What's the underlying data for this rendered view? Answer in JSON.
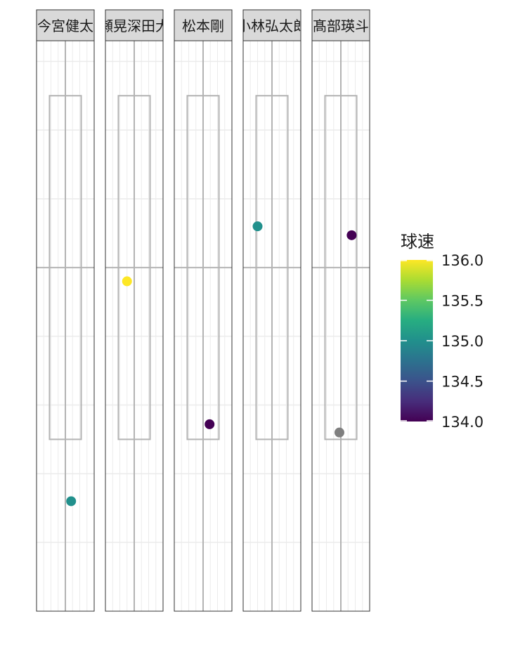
{
  "chart_data": {
    "type": "scatter",
    "facets": [
      "今宮健太",
      "川瀬晃深田大翔",
      "松本剛",
      "小林弘太郎",
      "髙部瑛斗"
    ],
    "xlim": [
      -2,
      2
    ],
    "ylim": [
      -1,
      7.3
    ],
    "strike_zone": {
      "x": [
        -1.1,
        1.1
      ],
      "y": [
        1.5,
        6.5
      ]
    },
    "points": [
      {
        "facet": 0,
        "x": 0.4,
        "y": 0.6,
        "speed": 135
      },
      {
        "facet": 1,
        "x": -0.5,
        "y": 3.8,
        "speed": 136
      },
      {
        "facet": 2,
        "x": 0.45,
        "y": 1.72,
        "speed": 134
      },
      {
        "facet": 3,
        "x": -1.0,
        "y": 4.6,
        "speed": 135
      },
      {
        "facet": 4,
        "x": 0.75,
        "y": 4.47,
        "speed": 134
      },
      {
        "facet": 4,
        "x": -0.1,
        "y": 1.6,
        "speed": null
      }
    ],
    "legend": {
      "title": "球速",
      "ticks": [
        "136.0",
        "135.5",
        "135.0",
        "134.5",
        "134.0"
      ],
      "tick_values": [
        136,
        135.5,
        135,
        134.5,
        134
      ],
      "range": [
        134,
        136
      ]
    },
    "na_color": "#7f7f7f",
    "grid": true
  }
}
